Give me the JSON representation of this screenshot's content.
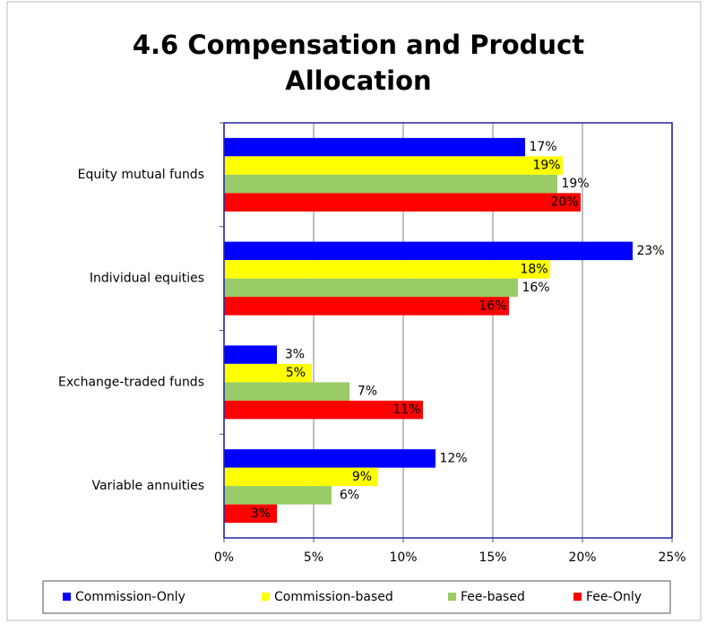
{
  "chart_data": {
    "type": "hbar",
    "title": "4.6 Compensation and Product Allocation",
    "categories": [
      "Equity mutual funds",
      "Individual equities",
      "Exchange-traded funds",
      "Variable annuities"
    ],
    "series": [
      {
        "name": "Commission-Only",
        "color": "#0000ff",
        "values": [
          16.8,
          22.8,
          2.95,
          11.8
        ],
        "value_labels": [
          "17%",
          "23%",
          "3%",
          "12%"
        ]
      },
      {
        "name": "Commission-based",
        "color": "#ffff00",
        "values": [
          18.9,
          18.2,
          4.9,
          8.6
        ],
        "value_labels": [
          "19%",
          "18%",
          "5%",
          "9%"
        ]
      },
      {
        "name": "Fee-based",
        "color": "#99cc66",
        "values": [
          18.6,
          16.4,
          7.0,
          6.0
        ],
        "value_labels": [
          "19%",
          "16%",
          "7%",
          "6%"
        ]
      },
      {
        "name": "Fee-Only",
        "color": "#ff0000",
        "values": [
          19.9,
          15.9,
          11.1,
          2.95
        ],
        "value_labels": [
          "20%",
          "16%",
          "11%",
          "3%"
        ]
      }
    ],
    "xlim": [
      0,
      25
    ],
    "xticks": [
      {
        "value": 0,
        "label": "0%"
      },
      {
        "value": 5,
        "label": "5%"
      },
      {
        "value": 10,
        "label": "10%"
      },
      {
        "value": 15,
        "label": "15%"
      },
      {
        "value": 20,
        "label": "20%"
      },
      {
        "value": 25,
        "label": "25%"
      }
    ],
    "grid": true,
    "legend": "bottom"
  }
}
